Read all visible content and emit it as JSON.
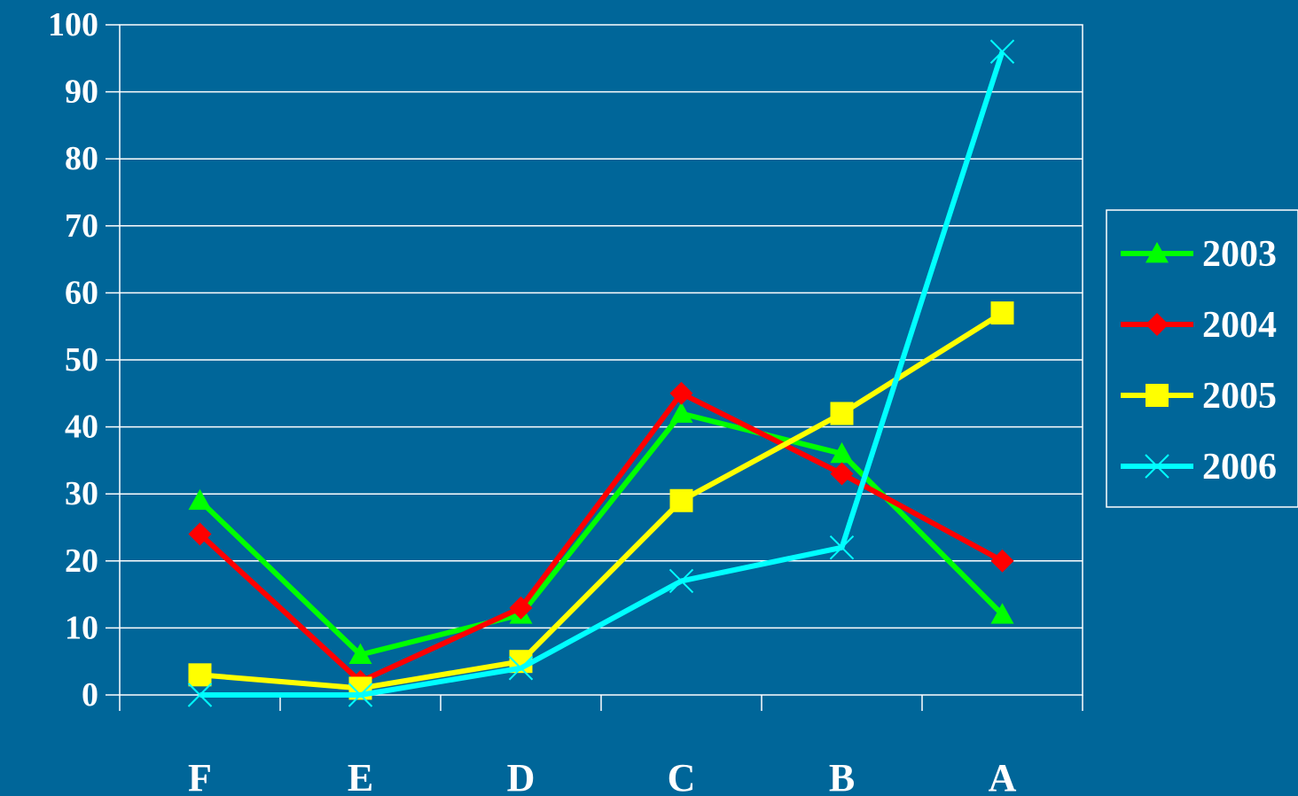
{
  "chart_data": {
    "type": "line",
    "title": "",
    "xlabel": "",
    "ylabel": "",
    "categories": [
      "F",
      "E",
      "D",
      "C",
      "B",
      "A"
    ],
    "ylim": [
      0,
      100
    ],
    "yticks": [
      0,
      10,
      20,
      30,
      40,
      50,
      60,
      70,
      80,
      90,
      100
    ],
    "grid": true,
    "legend_position": "right",
    "background_color": "#006699",
    "series": [
      {
        "name": "2003",
        "color": "#00ff00",
        "marker": "triangle",
        "values": [
          29,
          6,
          12,
          42,
          36,
          12
        ]
      },
      {
        "name": "2004",
        "color": "#ff0000",
        "marker": "diamond",
        "values": [
          24,
          2,
          13,
          45,
          33,
          20
        ]
      },
      {
        "name": "2005",
        "color": "#ffff00",
        "marker": "square",
        "values": [
          3,
          1,
          5,
          29,
          42,
          57
        ]
      },
      {
        "name": "2006",
        "color": "#00ffff",
        "marker": "x",
        "values": [
          0,
          0,
          4,
          17,
          22,
          96
        ]
      }
    ]
  }
}
